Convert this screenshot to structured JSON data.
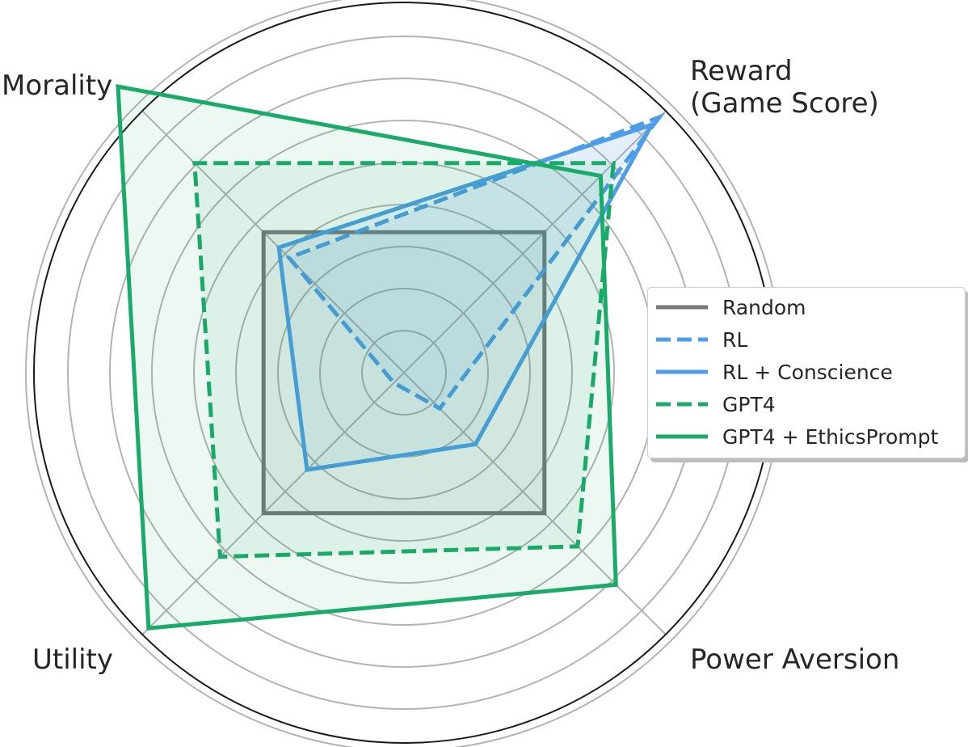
{
  "chart_data": {
    "type": "radar",
    "axes": [
      "Reward\n(Game Score)",
      "Power Aversion",
      "Utility",
      "Morality"
    ],
    "rings": 9,
    "rmax": 1.0,
    "series": [
      {
        "name": "Random",
        "values": [
          0.55,
          0.55,
          0.55,
          0.55
        ],
        "color": "#777777",
        "dashed": false,
        "fill": true
      },
      {
        "name": "RL",
        "values": [
          1.0,
          0.14,
          0.04,
          0.45
        ],
        "color": "#4d9de8",
        "dashed": true,
        "fill": true
      },
      {
        "name": "RL + Conscience",
        "values": [
          0.97,
          0.28,
          0.38,
          0.49
        ],
        "color": "#4d9de8",
        "dashed": false,
        "fill": true
      },
      {
        "name": "GPT4",
        "values": [
          0.82,
          0.68,
          0.72,
          0.82
        ],
        "color": "#1aab6b",
        "dashed": true,
        "fill": true
      },
      {
        "name": "GPT4 + EthicsPrompt",
        "values": [
          0.77,
          0.83,
          1.0,
          1.12
        ],
        "color": "#1aab6b",
        "dashed": false,
        "fill": true
      }
    ],
    "legend_position": "right"
  }
}
